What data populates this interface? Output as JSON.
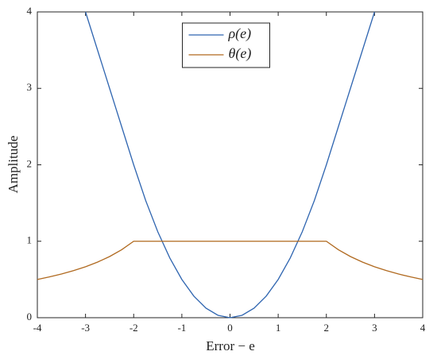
{
  "chart_data": {
    "type": "line",
    "xlabel": "Error − e",
    "ylabel": "Amplitude",
    "x": [
      -4,
      -3.75,
      -3.5,
      -3.25,
      -3,
      -2.75,
      -2.5,
      -2.25,
      -2,
      -1.75,
      -1.5,
      -1.25,
      -1,
      -0.75,
      -0.5,
      -0.25,
      0,
      0.25,
      0.5,
      0.75,
      1,
      1.25,
      1.5,
      1.75,
      2,
      2.25,
      2.5,
      2.75,
      3,
      3.25,
      3.5,
      3.75,
      4
    ],
    "series": [
      {
        "name": "ρ(e)",
        "color": "#2f65b0",
        "values": [
          null,
          null,
          null,
          null,
          4,
          3.5,
          3,
          2.5,
          2,
          1.53125,
          1.125,
          0.78125,
          0.5,
          0.28125,
          0.125,
          0.03125,
          0,
          0.03125,
          0.125,
          0.28125,
          0.5,
          0.78125,
          1.125,
          1.53125,
          2,
          2.5,
          3,
          3.5,
          4,
          null,
          null,
          null,
          null
        ]
      },
      {
        "name": "θ(e)",
        "color": "#b0691f",
        "values": [
          0.5,
          0.5333,
          0.5714,
          0.6154,
          0.6667,
          0.7273,
          0.8,
          0.8889,
          1,
          1,
          1,
          1,
          1,
          1,
          1,
          1,
          1,
          1,
          1,
          1,
          1,
          1,
          1,
          1,
          1,
          0.8889,
          0.8,
          0.7273,
          0.6667,
          0.6154,
          0.5714,
          0.5333,
          0.5
        ]
      }
    ],
    "xlim": [
      -4,
      4
    ],
    "xticks": [
      -4,
      -3,
      -2,
      -1,
      0,
      1,
      2,
      3,
      4
    ],
    "ylim": [
      0,
      4
    ],
    "yticks": [
      0,
      1,
      2,
      3,
      4
    ],
    "legend": "upper center"
  }
}
